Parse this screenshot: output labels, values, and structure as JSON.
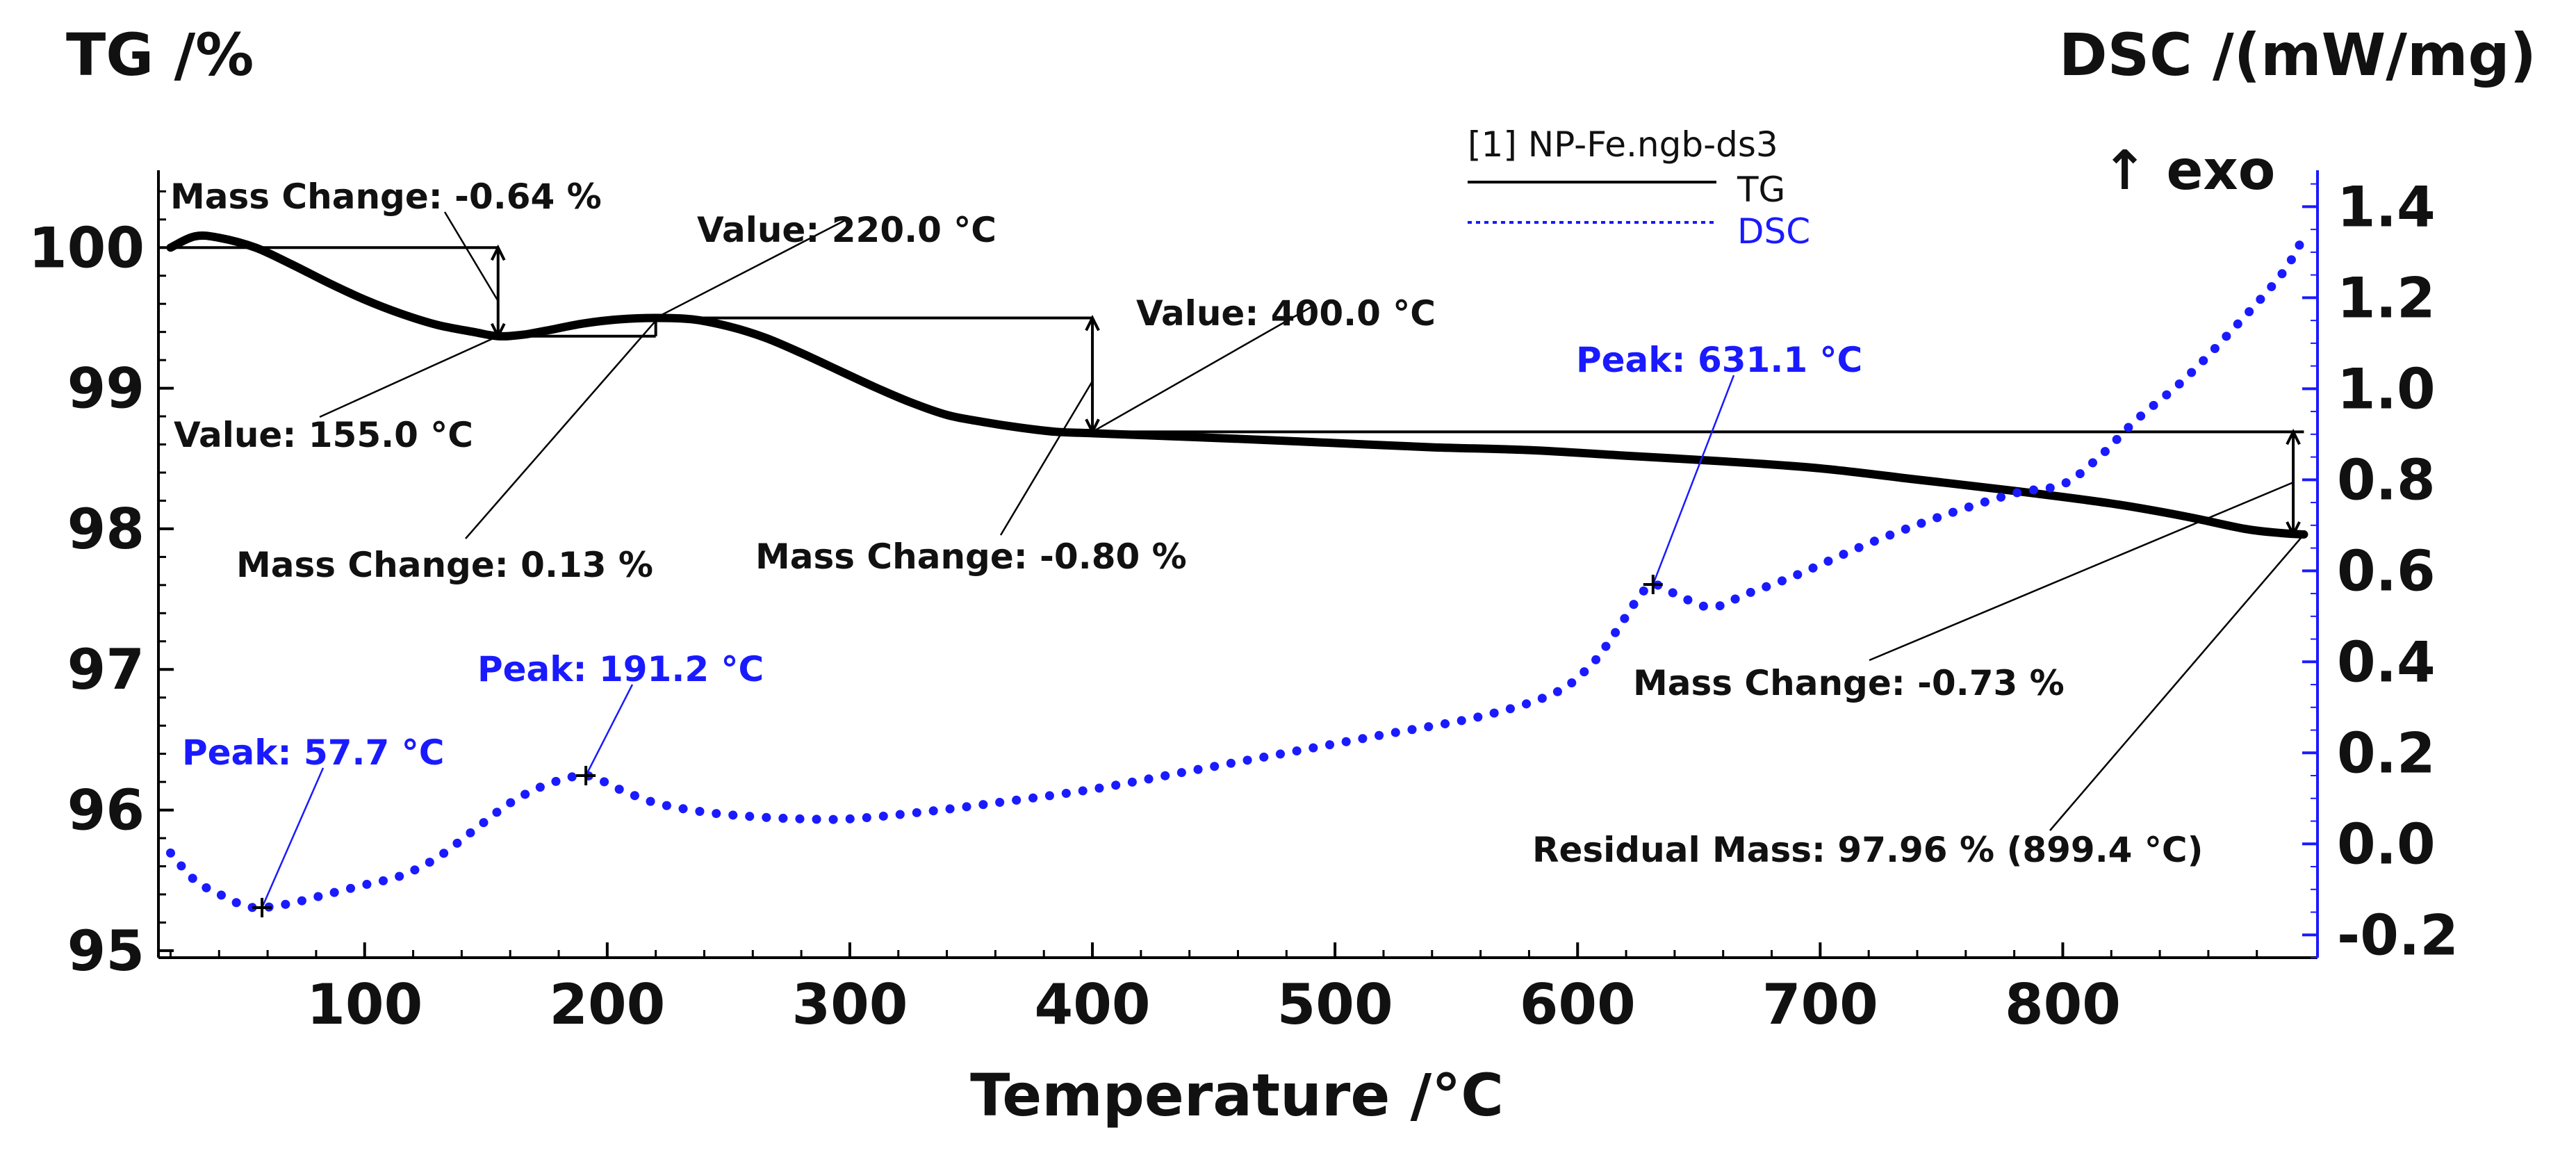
{
  "chart_data": {
    "type": "line",
    "legend_title": "[1] NP-Fe.ngb-ds3",
    "legend_placement": "top-center",
    "xlabel": "Temperature /°C",
    "xlim": [
      15,
      905
    ],
    "xticks": [
      100,
      200,
      300,
      400,
      500,
      600,
      700,
      800
    ],
    "y_left": {
      "label": "TG /%",
      "lim": [
        94.95,
        100.55
      ],
      "ticks": [
        95,
        96,
        97,
        98,
        99,
        100
      ]
    },
    "y_right": {
      "label": "DSC /(mW/mg)",
      "lim": [
        -0.25,
        1.48
      ],
      "ticks": [
        -0.2,
        0.0,
        0.2,
        0.4,
        0.6,
        0.8,
        1.0,
        1.2,
        1.4
      ],
      "tick_labels": [
        "-0.2",
        "0.0",
        "0.2",
        "0.4",
        "0.6",
        "0.8",
        "1.0",
        "1.2",
        "1.4"
      ]
    },
    "exo_label": "↑ exo",
    "grid": false,
    "series": [
      {
        "name": "TG",
        "axis": "left",
        "color": "#000000",
        "style": "solid",
        "x": [
          20,
          30,
          40,
          55,
          70,
          85,
          100,
          115,
          130,
          145,
          155,
          165,
          175,
          190,
          205,
          220,
          235,
          250,
          265,
          280,
          295,
          310,
          325,
          340,
          355,
          370,
          385,
          400,
          430,
          460,
          500,
          540,
          580,
          620,
          660,
          700,
          740,
          780,
          820,
          850,
          875,
          890,
          899.4
        ],
        "values": [
          100.0,
          100.08,
          100.07,
          100.0,
          99.88,
          99.75,
          99.63,
          99.53,
          99.45,
          99.4,
          99.37,
          99.38,
          99.41,
          99.46,
          99.49,
          99.5,
          99.49,
          99.44,
          99.36,
          99.25,
          99.13,
          99.01,
          98.9,
          98.81,
          98.76,
          98.72,
          98.69,
          98.68,
          98.66,
          98.64,
          98.61,
          98.58,
          98.56,
          98.52,
          98.48,
          98.43,
          98.35,
          98.27,
          98.18,
          98.09,
          98.0,
          97.97,
          97.96
        ]
      },
      {
        "name": "DSC",
        "axis": "right",
        "color": "#1a1aff",
        "style": "dotted",
        "x": [
          20,
          30,
          40,
          50,
          57.7,
          70,
          85,
          100,
          115,
          130,
          145,
          160,
          175,
          191.2,
          205,
          220,
          240,
          260,
          280,
          300,
          330,
          360,
          400,
          440,
          480,
          520,
          560,
          590,
          605,
          615,
          625,
          631.1,
          640,
          655,
          670,
          690,
          720,
          750,
          780,
          800,
          815,
          830,
          850,
          870,
          890,
          899
        ],
        "values": [
          -0.02,
          -0.08,
          -0.11,
          -0.135,
          -0.14,
          -0.13,
          -0.11,
          -0.09,
          -0.07,
          -0.03,
          0.03,
          0.09,
          0.13,
          0.15,
          0.12,
          0.09,
          0.07,
          0.06,
          0.055,
          0.055,
          0.07,
          0.09,
          0.12,
          0.16,
          0.2,
          0.24,
          0.28,
          0.33,
          0.39,
          0.46,
          0.54,
          0.57,
          0.55,
          0.52,
          0.55,
          0.59,
          0.66,
          0.72,
          0.77,
          0.79,
          0.85,
          0.93,
          1.02,
          1.13,
          1.25,
          1.33
        ]
      }
    ],
    "annotations": {
      "tg": [
        {
          "text": "Mass Change: -0.64 %"
        },
        {
          "text": "Value: 155.0 °C"
        },
        {
          "text": "Mass Change: 0.13 %"
        },
        {
          "text": "Value: 220.0 °C"
        },
        {
          "text": "Value: 400.0 °C"
        },
        {
          "text": "Mass Change: -0.80 %"
        },
        {
          "text": "Mass Change: -0.73 %"
        },
        {
          "text": "Residual Mass: 97.96 % (899.4 °C)"
        }
      ],
      "dsc_peaks": [
        {
          "text": "Peak: 57.7 °C",
          "x": 57.7,
          "y": -0.14
        },
        {
          "text": "Peak: 191.2 °C",
          "x": 191.2,
          "y": 0.15
        },
        {
          "text": "Peak: 631.1 °C",
          "x": 631.1,
          "y": 0.57
        }
      ]
    },
    "step_levels": [
      {
        "from": 20,
        "to": 155,
        "level": 100.0
      },
      {
        "from": 155,
        "to": 220,
        "level": 99.37
      },
      {
        "from": 220,
        "to": 400,
        "level": 99.5
      },
      {
        "from": 400,
        "to": 899.4,
        "level": 98.69
      }
    ],
    "change_arrows": [
      {
        "x": 155,
        "from": 100.0,
        "to": 99.37
      },
      {
        "x": 400,
        "from": 99.5,
        "to": 98.69
      },
      {
        "x": 895,
        "from": 98.69,
        "to": 97.96
      }
    ]
  }
}
